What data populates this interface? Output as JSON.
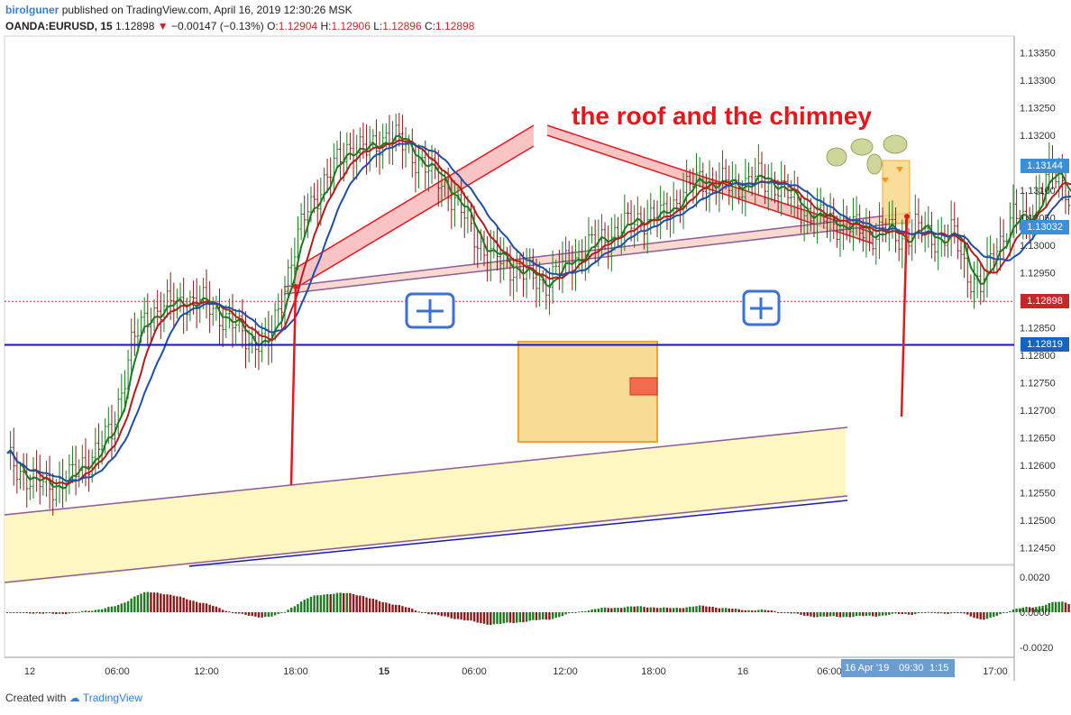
{
  "header": {
    "author": "birolguner",
    "published_text": "published on TradingView.com, April 16, 2019 12:30:26 MSK",
    "symbol": "OANDA:EURUSD, 15",
    "last": "1.12898",
    "change": "−0.00147 (−0.13%)",
    "open_label": "O:",
    "open": "1.12904",
    "high_label": "H:",
    "high": "1.12906",
    "low_label": "L:",
    "low": "1.12896",
    "close_label": "C:",
    "close": "1.12898"
  },
  "annotation": {
    "title": "the roof and the chimney",
    "color": "#e8161b"
  },
  "price_axis": {
    "ticks": [
      "1.13350",
      "1.13300",
      "1.13250",
      "1.13200",
      "1.13150",
      "1.13100",
      "1.13050",
      "1.13000",
      "1.12950",
      "1.12900",
      "1.12850",
      "1.12800",
      "1.12750",
      "1.12700",
      "1.12650",
      "1.12600",
      "1.12550",
      "1.12500",
      "1.12450"
    ],
    "tick_values": [
      1.1335,
      1.133,
      1.1325,
      1.132,
      1.1315,
      1.131,
      1.1305,
      1.13,
      1.1295,
      1.129,
      1.1285,
      1.128,
      1.1275,
      1.127,
      1.1265,
      1.126,
      1.1255,
      1.125,
      1.1245
    ],
    "labels": [
      {
        "text": "1.13144",
        "value": 1.13144,
        "color": "#3a8fd9"
      },
      {
        "text": "1.13032",
        "value": 1.13032,
        "color": "#3a8fd9"
      },
      {
        "text": "1.12898",
        "value": 1.12898,
        "color": "#c62828"
      },
      {
        "text": "1.12819",
        "value": 1.12819,
        "color": "#1565c0"
      }
    ]
  },
  "time_axis": {
    "ticks": [
      {
        "text": "12",
        "bold": false
      },
      {
        "text": "06:00",
        "bold": false
      },
      {
        "text": "12:00",
        "bold": false
      },
      {
        "text": "18:00",
        "bold": false
      },
      {
        "text": "15",
        "bold": true
      },
      {
        "text": "06:00",
        "bold": false
      },
      {
        "text": "12:00",
        "bold": false
      },
      {
        "text": "18:00",
        "bold": false
      },
      {
        "text": "16",
        "bold": false
      },
      {
        "text": "06:00",
        "bold": false
      },
      {
        "text": "17:00",
        "bold": false
      }
    ],
    "highlight_date": "16 Apr '19",
    "highlight_time": "09:30",
    "highlight_extra": "1:15"
  },
  "oscillator_axis": {
    "ticks": [
      "0.0020",
      "0.0000",
      "-0.0020"
    ],
    "tick_values": [
      0.002,
      0.0,
      -0.002
    ]
  },
  "chart_data": {
    "type": "candlestick",
    "symbol": "OANDA:EURUSD",
    "interval": "15",
    "ylim": [
      1.1242,
      1.1338
    ],
    "x_range_bars": [
      0,
      300
    ],
    "price_path": [
      [
        0,
        1.1261
      ],
      [
        6,
        1.1258
      ],
      [
        12,
        1.1256
      ],
      [
        20,
        1.1258
      ],
      [
        26,
        1.1262
      ],
      [
        32,
        1.1266
      ],
      [
        38,
        1.1282
      ],
      [
        44,
        1.1288
      ],
      [
        50,
        1.1289
      ],
      [
        56,
        1.129
      ],
      [
        62,
        1.1289
      ],
      [
        68,
        1.1286
      ],
      [
        74,
        1.1283
      ],
      [
        80,
        1.1282
      ],
      [
        86,
        1.1295
      ],
      [
        92,
        1.1307
      ],
      [
        98,
        1.1312
      ],
      [
        104,
        1.1318
      ],
      [
        110,
        1.1317
      ],
      [
        116,
        1.132
      ],
      [
        122,
        1.1318
      ],
      [
        128,
        1.1314
      ],
      [
        134,
        1.1311
      ],
      [
        140,
        1.1305
      ],
      [
        146,
        1.1299
      ],
      [
        152,
        1.1297
      ],
      [
        158,
        1.1295
      ],
      [
        164,
        1.1293
      ],
      [
        170,
        1.1296
      ],
      [
        176,
        1.1299
      ],
      [
        182,
        1.1301
      ],
      [
        188,
        1.1303
      ],
      [
        194,
        1.1305
      ],
      [
        200,
        1.1305
      ],
      [
        206,
        1.1309
      ],
      [
        212,
        1.1312
      ],
      [
        218,
        1.1311
      ],
      [
        224,
        1.1311
      ],
      [
        230,
        1.1312
      ],
      [
        236,
        1.1311
      ],
      [
        242,
        1.1307
      ],
      [
        248,
        1.1305
      ],
      [
        254,
        1.1304
      ],
      [
        260,
        1.1303
      ],
      [
        266,
        1.1302
      ],
      [
        270,
        1.1303
      ],
      [
        274,
        1.1301
      ],
      [
        278,
        1.1303
      ],
      [
        282,
        1.1302
      ],
      [
        286,
        1.1301
      ],
      [
        290,
        1.1302
      ],
      [
        294,
        1.1295
      ],
      [
        298,
        1.1292
      ],
      [
        302,
        1.1299
      ],
      [
        306,
        1.1303
      ],
      [
        308,
        1.1305
      ],
      [
        312,
        1.1304
      ],
      [
        316,
        1.131
      ],
      [
        320,
        1.1313
      ],
      [
        324,
        1.1311
      ],
      [
        328,
        1.1303
      ],
      [
        332,
        1.1291
      ],
      [
        334,
        1.1283
      ],
      [
        336,
        1.129
      ]
    ],
    "moving_averages": [
      {
        "color": "#1e7a1e",
        "lag": 4
      },
      {
        "color": "#b71c1c",
        "lag": 9
      },
      {
        "color": "#1e4fa8",
        "lag": 16
      }
    ],
    "oscillator": {
      "type": "histogram",
      "ylim": [
        -0.0024,
        0.0024
      ],
      "colors": {
        "up": "#1e7a1e",
        "down": "#8b1a1a"
      }
    },
    "horizontal_levels": [
      {
        "value": 1.12819,
        "color": "#1515c8",
        "style": "solid"
      },
      {
        "value": 1.12898,
        "color": "#c62828",
        "style": "dotted"
      }
    ]
  },
  "footer": {
    "created_with": "Created with",
    "brand": "TradingView"
  }
}
